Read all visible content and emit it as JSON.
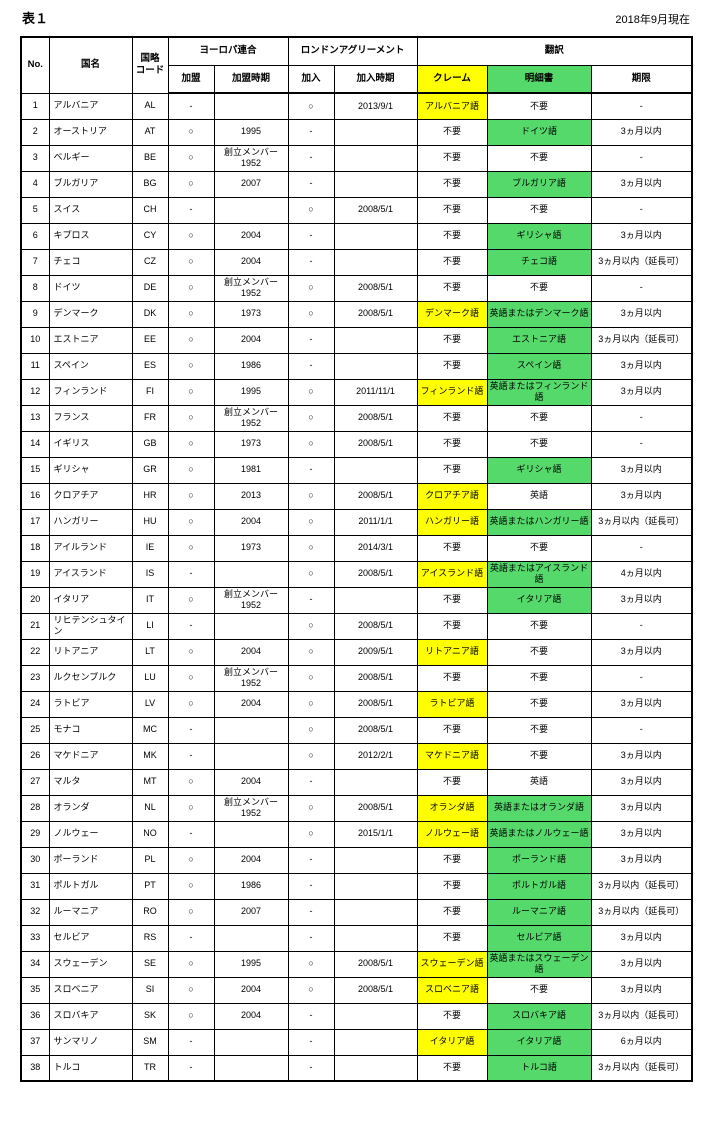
{
  "page": {
    "title": "表１",
    "as_of": "2018年9月現在"
  },
  "colors": {
    "claims_highlight": "#FFFF00",
    "spec_highlight": "#55D96B"
  },
  "table": {
    "headers": {
      "no": "No.",
      "country": "国名",
      "code": "国略\nコード",
      "eu_group": "ヨーロパ連合",
      "eu_member": "加盟",
      "eu_time": "加盟時期",
      "la_group": "ロンドンアグリーメント",
      "la_member": "加入",
      "la_time": "加入時期",
      "trans_group": "翻訳",
      "claims": "クレーム",
      "spec": "明細書",
      "deadline": "期限"
    },
    "rows": [
      {
        "no": "1",
        "country": "アルバニア",
        "code": "AL",
        "eu_member": "-",
        "eu_time": "",
        "la_member": "○",
        "la_time": "2013/9/1",
        "claims": {
          "text": "アルバニア語",
          "bg": "yellow"
        },
        "spec": {
          "text": "不要",
          "bg": "none"
        },
        "deadline": "-"
      },
      {
        "no": "2",
        "country": "オーストリア",
        "code": "AT",
        "eu_member": "○",
        "eu_time": "1995",
        "la_member": "-",
        "la_time": "",
        "claims": {
          "text": "不要",
          "bg": "none"
        },
        "spec": {
          "text": "ドイツ語",
          "bg": "green"
        },
        "deadline": "3ヵ月以内"
      },
      {
        "no": "3",
        "country": "ベルギー",
        "code": "BE",
        "eu_member": "○",
        "eu_time": "創立メンバー\n1952",
        "la_member": "-",
        "la_time": "",
        "claims": {
          "text": "不要",
          "bg": "none"
        },
        "spec": {
          "text": "不要",
          "bg": "none"
        },
        "deadline": "-"
      },
      {
        "no": "4",
        "country": "ブルガリア",
        "code": "BG",
        "eu_member": "○",
        "eu_time": "2007",
        "la_member": "-",
        "la_time": "",
        "claims": {
          "text": "不要",
          "bg": "none"
        },
        "spec": {
          "text": "ブルガリア語",
          "bg": "green"
        },
        "deadline": "3ヵ月以内"
      },
      {
        "no": "5",
        "country": "スイス",
        "code": "CH",
        "eu_member": "-",
        "eu_time": "",
        "la_member": "○",
        "la_time": "2008/5/1",
        "claims": {
          "text": "不要",
          "bg": "none"
        },
        "spec": {
          "text": "不要",
          "bg": "none"
        },
        "deadline": "-"
      },
      {
        "no": "6",
        "country": "キプロス",
        "code": "CY",
        "eu_member": "○",
        "eu_time": "2004",
        "la_member": "-",
        "la_time": "",
        "claims": {
          "text": "不要",
          "bg": "none"
        },
        "spec": {
          "text": "ギリシャ語",
          "bg": "green"
        },
        "deadline": "3ヵ月以内"
      },
      {
        "no": "7",
        "country": "チェコ",
        "code": "CZ",
        "eu_member": "○",
        "eu_time": "2004",
        "la_member": "-",
        "la_time": "",
        "claims": {
          "text": "不要",
          "bg": "none"
        },
        "spec": {
          "text": "チェコ語",
          "bg": "green"
        },
        "deadline": "3ヵ月以内（延長可）"
      },
      {
        "no": "8",
        "country": "ドイツ",
        "code": "DE",
        "eu_member": "○",
        "eu_time": "創立メンバー\n1952",
        "la_member": "○",
        "la_time": "2008/5/1",
        "claims": {
          "text": "不要",
          "bg": "none"
        },
        "spec": {
          "text": "不要",
          "bg": "none"
        },
        "deadline": "-"
      },
      {
        "no": "9",
        "country": "デンマーク",
        "code": "DK",
        "eu_member": "○",
        "eu_time": "1973",
        "la_member": "○",
        "la_time": "2008/5/1",
        "claims": {
          "text": "デンマーク語",
          "bg": "yellow"
        },
        "spec": {
          "text": "英語またはデンマーク語",
          "bg": "green"
        },
        "deadline": "3ヵ月以内"
      },
      {
        "no": "10",
        "country": "エストニア",
        "code": "EE",
        "eu_member": "○",
        "eu_time": "2004",
        "la_member": "-",
        "la_time": "",
        "claims": {
          "text": "不要",
          "bg": "none"
        },
        "spec": {
          "text": "エストニア語",
          "bg": "green"
        },
        "deadline": "3ヵ月以内（延長可）"
      },
      {
        "no": "11",
        "country": "スペイン",
        "code": "ES",
        "eu_member": "○",
        "eu_time": "1986",
        "la_member": "-",
        "la_time": "",
        "claims": {
          "text": "不要",
          "bg": "none"
        },
        "spec": {
          "text": "スペイン語",
          "bg": "green"
        },
        "deadline": "3ヵ月以内"
      },
      {
        "no": "12",
        "country": "フィンランド",
        "code": "FI",
        "eu_member": "○",
        "eu_time": "1995",
        "la_member": "○",
        "la_time": "2011/11/1",
        "claims": {
          "text": "フィンランド語",
          "bg": "yellow"
        },
        "spec": {
          "text": "英語またはフィンランド語",
          "bg": "green"
        },
        "deadline": "3ヵ月以内"
      },
      {
        "no": "13",
        "country": "フランス",
        "code": "FR",
        "eu_member": "○",
        "eu_time": "創立メンバー\n1952",
        "la_member": "○",
        "la_time": "2008/5/1",
        "claims": {
          "text": "不要",
          "bg": "none"
        },
        "spec": {
          "text": "不要",
          "bg": "none"
        },
        "deadline": "-"
      },
      {
        "no": "14",
        "country": "イギリス",
        "code": "GB",
        "eu_member": "○",
        "eu_time": "1973",
        "la_member": "○",
        "la_time": "2008/5/1",
        "claims": {
          "text": "不要",
          "bg": "none"
        },
        "spec": {
          "text": "不要",
          "bg": "none"
        },
        "deadline": "-"
      },
      {
        "no": "15",
        "country": "ギリシャ",
        "code": "GR",
        "eu_member": "○",
        "eu_time": "1981",
        "la_member": "-",
        "la_time": "",
        "claims": {
          "text": "不要",
          "bg": "none"
        },
        "spec": {
          "text": "ギリシャ語",
          "bg": "green"
        },
        "deadline": "3ヵ月以内"
      },
      {
        "no": "16",
        "country": "クロアチア",
        "code": "HR",
        "eu_member": "○",
        "eu_time": "2013",
        "la_member": "○",
        "la_time": "2008/5/1",
        "claims": {
          "text": "クロアチア語",
          "bg": "yellow"
        },
        "spec": {
          "text": "英語",
          "bg": "none"
        },
        "deadline": "3ヵ月以内"
      },
      {
        "no": "17",
        "country": "ハンガリー",
        "code": "HU",
        "eu_member": "○",
        "eu_time": "2004",
        "la_member": "○",
        "la_time": "2011/1/1",
        "claims": {
          "text": "ハンガリー語",
          "bg": "yellow"
        },
        "spec": {
          "text": "英語またはハンガリー語",
          "bg": "green"
        },
        "deadline": "3ヵ月以内（延長可）"
      },
      {
        "no": "18",
        "country": "アイルランド",
        "code": "IE",
        "eu_member": "○",
        "eu_time": "1973",
        "la_member": "○",
        "la_time": "2014/3/1",
        "claims": {
          "text": "不要",
          "bg": "none"
        },
        "spec": {
          "text": "不要",
          "bg": "none"
        },
        "deadline": "-"
      },
      {
        "no": "19",
        "country": "アイスランド",
        "code": "IS",
        "eu_member": "-",
        "eu_time": "",
        "la_member": "○",
        "la_time": "2008/5/1",
        "claims": {
          "text": "アイスランド語",
          "bg": "yellow"
        },
        "spec": {
          "text": "英語またはアイスランド語",
          "bg": "green"
        },
        "deadline": "4ヵ月以内"
      },
      {
        "no": "20",
        "country": "イタリア",
        "code": "IT",
        "eu_member": "○",
        "eu_time": "創立メンバー\n1952",
        "la_member": "-",
        "la_time": "",
        "claims": {
          "text": "不要",
          "bg": "none"
        },
        "spec": {
          "text": "イタリア語",
          "bg": "green"
        },
        "deadline": "3ヵ月以内"
      },
      {
        "no": "21",
        "country": "リヒテンシュタイン",
        "code": "LI",
        "eu_member": "-",
        "eu_time": "",
        "la_member": "○",
        "la_time": "2008/5/1",
        "claims": {
          "text": "不要",
          "bg": "none"
        },
        "spec": {
          "text": "不要",
          "bg": "none"
        },
        "deadline": "-"
      },
      {
        "no": "22",
        "country": "リトアニア",
        "code": "LT",
        "eu_member": "○",
        "eu_time": "2004",
        "la_member": "○",
        "la_time": "2009/5/1",
        "claims": {
          "text": "リトアニア語",
          "bg": "yellow"
        },
        "spec": {
          "text": "不要",
          "bg": "none"
        },
        "deadline": "3ヵ月以内"
      },
      {
        "no": "23",
        "country": "ルクセンブルク",
        "code": "LU",
        "eu_member": "○",
        "eu_time": "創立メンバー\n1952",
        "la_member": "○",
        "la_time": "2008/5/1",
        "claims": {
          "text": "不要",
          "bg": "none"
        },
        "spec": {
          "text": "不要",
          "bg": "none"
        },
        "deadline": "-"
      },
      {
        "no": "24",
        "country": "ラトビア",
        "code": "LV",
        "eu_member": "○",
        "eu_time": "2004",
        "la_member": "○",
        "la_time": "2008/5/1",
        "claims": {
          "text": "ラトビア語",
          "bg": "yellow"
        },
        "spec": {
          "text": "不要",
          "bg": "none"
        },
        "deadline": "3ヵ月以内"
      },
      {
        "no": "25",
        "country": "モナコ",
        "code": "MC",
        "eu_member": "-",
        "eu_time": "",
        "la_member": "○",
        "la_time": "2008/5/1",
        "claims": {
          "text": "不要",
          "bg": "none"
        },
        "spec": {
          "text": "不要",
          "bg": "none"
        },
        "deadline": "-"
      },
      {
        "no": "26",
        "country": "マケドニア",
        "code": "MK",
        "eu_member": "-",
        "eu_time": "",
        "la_member": "○",
        "la_time": "2012/2/1",
        "claims": {
          "text": "マケドニア語",
          "bg": "yellow"
        },
        "spec": {
          "text": "不要",
          "bg": "none"
        },
        "deadline": "3ヵ月以内"
      },
      {
        "no": "27",
        "country": "マルタ",
        "code": "MT",
        "eu_member": "○",
        "eu_time": "2004",
        "la_member": "-",
        "la_time": "",
        "claims": {
          "text": "不要",
          "bg": "none"
        },
        "spec": {
          "text": "英語",
          "bg": "none"
        },
        "deadline": "3ヵ月以内"
      },
      {
        "no": "28",
        "country": "オランダ",
        "code": "NL",
        "eu_member": "○",
        "eu_time": "創立メンバー\n1952",
        "la_member": "○",
        "la_time": "2008/5/1",
        "claims": {
          "text": "オランダ語",
          "bg": "yellow"
        },
        "spec": {
          "text": "英語またはオランダ語",
          "bg": "green"
        },
        "deadline": "3ヵ月以内"
      },
      {
        "no": "29",
        "country": "ノルウェー",
        "code": "NO",
        "eu_member": "-",
        "eu_time": "",
        "la_member": "○",
        "la_time": "2015/1/1",
        "claims": {
          "text": "ノルウェー語",
          "bg": "yellow"
        },
        "spec": {
          "text": "英語またはノルウェー語",
          "bg": "green"
        },
        "deadline": "3ヵ月以内"
      },
      {
        "no": "30",
        "country": "ポーランド",
        "code": "PL",
        "eu_member": "○",
        "eu_time": "2004",
        "la_member": "-",
        "la_time": "",
        "claims": {
          "text": "不要",
          "bg": "none"
        },
        "spec": {
          "text": "ポーランド語",
          "bg": "green"
        },
        "deadline": "3ヵ月以内"
      },
      {
        "no": "31",
        "country": "ポルトガル",
        "code": "PT",
        "eu_member": "○",
        "eu_time": "1986",
        "la_member": "-",
        "la_time": "",
        "claims": {
          "text": "不要",
          "bg": "none"
        },
        "spec": {
          "text": "ポルトガル語",
          "bg": "green"
        },
        "deadline": "3ヵ月以内（延長可）"
      },
      {
        "no": "32",
        "country": "ルーマニア",
        "code": "RO",
        "eu_member": "○",
        "eu_time": "2007",
        "la_member": "-",
        "la_time": "",
        "claims": {
          "text": "不要",
          "bg": "none"
        },
        "spec": {
          "text": "ルーマニア語",
          "bg": "green"
        },
        "deadline": "3ヵ月以内（延長可）"
      },
      {
        "no": "33",
        "country": "セルビア",
        "code": "RS",
        "eu_member": "-",
        "eu_time": "",
        "la_member": "-",
        "la_time": "",
        "claims": {
          "text": "不要",
          "bg": "none"
        },
        "spec": {
          "text": "セルビア語",
          "bg": "green"
        },
        "deadline": "3ヵ月以内"
      },
      {
        "no": "34",
        "country": "スウェーデン",
        "code": "SE",
        "eu_member": "○",
        "eu_time": "1995",
        "la_member": "○",
        "la_time": "2008/5/1",
        "claims": {
          "text": "スウェーデン語",
          "bg": "yellow"
        },
        "spec": {
          "text": "英語またはスウェーデン語",
          "bg": "green"
        },
        "deadline": "3ヵ月以内"
      },
      {
        "no": "35",
        "country": "スロベニア",
        "code": "SI",
        "eu_member": "○",
        "eu_time": "2004",
        "la_member": "○",
        "la_time": "2008/5/1",
        "claims": {
          "text": "スロベニア語",
          "bg": "yellow"
        },
        "spec": {
          "text": "不要",
          "bg": "none"
        },
        "deadline": "3ヵ月以内"
      },
      {
        "no": "36",
        "country": "スロバキア",
        "code": "SK",
        "eu_member": "○",
        "eu_time": "2004",
        "la_member": "-",
        "la_time": "",
        "claims": {
          "text": "不要",
          "bg": "none"
        },
        "spec": {
          "text": "スロバキア語",
          "bg": "green"
        },
        "deadline": "3ヵ月以内（延長可）"
      },
      {
        "no": "37",
        "country": "サンマリノ",
        "code": "SM",
        "eu_member": "-",
        "eu_time": "",
        "la_member": "-",
        "la_time": "",
        "claims": {
          "text": "イタリア語",
          "bg": "yellow"
        },
        "spec": {
          "text": "イタリア語",
          "bg": "green"
        },
        "deadline": "6ヵ月以内"
      },
      {
        "no": "38",
        "country": "トルコ",
        "code": "TR",
        "eu_member": "-",
        "eu_time": "",
        "la_member": "-",
        "la_time": "",
        "claims": {
          "text": "不要",
          "bg": "none"
        },
        "spec": {
          "text": "トルコ語",
          "bg": "green"
        },
        "deadline": "3ヵ月以内（延長可）"
      }
    ]
  }
}
